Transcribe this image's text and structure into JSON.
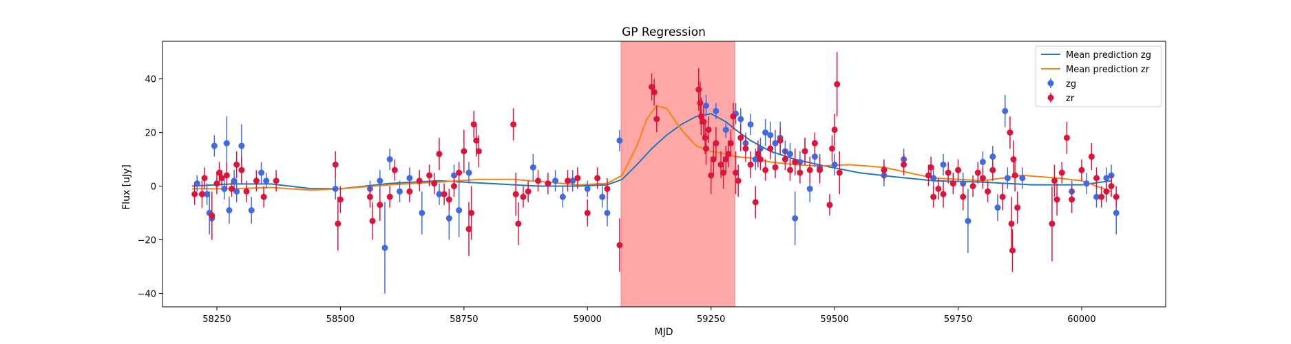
{
  "chart_data": {
    "type": "scatter",
    "title": "GP Regression",
    "xlabel": "MJD",
    "ylabel": "Flux [uJy]",
    "xlim": [
      58140,
      60170
    ],
    "ylim": [
      -45,
      54
    ],
    "xticks": [
      58250,
      58500,
      58750,
      59000,
      59250,
      59500,
      59750,
      60000
    ],
    "yticks": [
      -40,
      -20,
      0,
      20,
      40
    ],
    "highlight_span": {
      "x0": 59068,
      "x1": 59298,
      "color": "#ff9999"
    },
    "legend": {
      "placement": "upper right",
      "entries": [
        {
          "label": "Mean prediction zg",
          "kind": "line",
          "color": "#1f77b4"
        },
        {
          "label": "Mean prediction zr",
          "kind": "line",
          "color": "#ff7f0e"
        },
        {
          "label": "zg",
          "kind": "errorbar",
          "color": "#4169e1"
        },
        {
          "label": "zr",
          "kind": "errorbar",
          "color": "#dc143c"
        }
      ]
    },
    "lines": [
      {
        "name": "Mean prediction zg",
        "color": "#1f77b4",
        "x": [
          58200,
          58280,
          58360,
          58440,
          58500,
          58600,
          58700,
          58800,
          58900,
          58980,
          59040,
          59070,
          59100,
          59130,
          59160,
          59190,
          59220,
          59250,
          59280,
          59300,
          59330,
          59370,
          59420,
          59480,
          59550,
          59620,
          59700,
          59800,
          59900,
          60000,
          60060
        ],
        "y": [
          0,
          0.8,
          0.8,
          -0.9,
          -1,
          1,
          2,
          1,
          0,
          0,
          0.5,
          2.5,
          8,
          14,
          19,
          23,
          26,
          27,
          24,
          21,
          17,
          13,
          10,
          7.5,
          5,
          3.5,
          2,
          1.5,
          0.5,
          0.5,
          2
        ]
      },
      {
        "name": "Mean prediction zr",
        "color": "#ff7f0e",
        "x": [
          58200,
          58280,
          58360,
          58440,
          58500,
          58600,
          58700,
          58780,
          58850,
          58920,
          58980,
          59040,
          59070,
          59100,
          59120,
          59140,
          59160,
          59190,
          59220,
          59250,
          59280,
          59300,
          59330,
          59370,
          59420,
          59470,
          59530,
          59600,
          59700,
          59800,
          59880,
          59950,
          60000,
          60060
        ],
        "y": [
          -1,
          -1,
          -0.5,
          -1.5,
          -1,
          0.5,
          1.5,
          2.5,
          2.5,
          1.5,
          0.5,
          1,
          4,
          15,
          25,
          30,
          29,
          21,
          15,
          13,
          12,
          11,
          10.5,
          9,
          8,
          7.5,
          8,
          7,
          3,
          2,
          4,
          3,
          2,
          -2
        ]
      }
    ],
    "series": [
      {
        "name": "zg",
        "color": "#4169e1",
        "points": [
          [
            58210,
            1,
            3
          ],
          [
            58230,
            -3,
            4
          ],
          [
            58235,
            -10,
            8
          ],
          [
            58240,
            -12,
            8
          ],
          [
            58245,
            15,
            4
          ],
          [
            58265,
            -1,
            4
          ],
          [
            58270,
            16,
            10
          ],
          [
            58275,
            -9,
            5
          ],
          [
            58285,
            2,
            4
          ],
          [
            58290,
            -2,
            4
          ],
          [
            58300,
            15,
            8
          ],
          [
            58320,
            -9,
            5
          ],
          [
            58340,
            5,
            4
          ],
          [
            58350,
            2,
            3
          ],
          [
            58490,
            -1,
            4
          ],
          [
            58560,
            -1,
            3
          ],
          [
            58580,
            2,
            4
          ],
          [
            58590,
            -23,
            17
          ],
          [
            58600,
            10,
            4
          ],
          [
            58620,
            -2,
            4
          ],
          [
            58640,
            3,
            4
          ],
          [
            58665,
            -10,
            8
          ],
          [
            58700,
            -3,
            4
          ],
          [
            58720,
            -12,
            8
          ],
          [
            58730,
            4,
            4
          ],
          [
            58740,
            -9,
            10
          ],
          [
            58760,
            5,
            4
          ],
          [
            58890,
            7,
            5
          ],
          [
            58935,
            2,
            4
          ],
          [
            58950,
            -4,
            4
          ],
          [
            58970,
            2,
            4
          ],
          [
            59000,
            -1,
            3
          ],
          [
            59030,
            -4,
            4
          ],
          [
            59040,
            -10,
            5
          ],
          [
            59065,
            17,
            4
          ],
          [
            59240,
            30,
            4
          ],
          [
            59260,
            28,
            3
          ],
          [
            59280,
            21,
            3
          ],
          [
            59300,
            27,
            4
          ],
          [
            59310,
            25,
            4
          ],
          [
            59320,
            16,
            4
          ],
          [
            59330,
            23,
            4
          ],
          [
            59340,
            10,
            4
          ],
          [
            59350,
            14,
            4
          ],
          [
            59360,
            20,
            5
          ],
          [
            59370,
            19,
            5
          ],
          [
            59380,
            16,
            5
          ],
          [
            59390,
            18,
            6
          ],
          [
            59400,
            13,
            4
          ],
          [
            59410,
            12,
            4
          ],
          [
            59420,
            -12,
            10
          ],
          [
            59430,
            9,
            4
          ],
          [
            59440,
            13,
            5
          ],
          [
            59450,
            -1,
            5
          ],
          [
            59460,
            11,
            4
          ],
          [
            59470,
            7,
            5
          ],
          [
            59500,
            8,
            4
          ],
          [
            59600,
            4,
            4
          ],
          [
            59640,
            10,
            4
          ],
          [
            59700,
            3,
            4
          ],
          [
            59720,
            8,
            4
          ],
          [
            59740,
            1,
            4
          ],
          [
            59760,
            1,
            4
          ],
          [
            59770,
            -13,
            12
          ],
          [
            59800,
            9,
            4
          ],
          [
            59820,
            11,
            4
          ],
          [
            59830,
            -8,
            5
          ],
          [
            59845,
            28,
            6
          ],
          [
            59850,
            3,
            4
          ],
          [
            59880,
            3,
            4
          ],
          [
            59980,
            -2,
            4
          ],
          [
            60010,
            1,
            4
          ],
          [
            60030,
            -4,
            4
          ],
          [
            60050,
            3,
            4
          ],
          [
            60060,
            4,
            4
          ],
          [
            60070,
            -10,
            8
          ]
        ]
      },
      {
        "name": "zr",
        "color": "#dc143c",
        "points": [
          [
            58205,
            -3,
            4
          ],
          [
            58220,
            -3,
            5
          ],
          [
            58225,
            3,
            4
          ],
          [
            58240,
            -11,
            9
          ],
          [
            58250,
            1,
            4
          ],
          [
            58255,
            5,
            4
          ],
          [
            58260,
            3,
            3
          ],
          [
            58270,
            4,
            5
          ],
          [
            58280,
            -1,
            3
          ],
          [
            58290,
            8,
            5
          ],
          [
            58300,
            6,
            5
          ],
          [
            58310,
            -2,
            4
          ],
          [
            58330,
            2,
            4
          ],
          [
            58345,
            -4,
            4
          ],
          [
            58370,
            2,
            4
          ],
          [
            58490,
            8,
            5
          ],
          [
            58495,
            -14,
            10
          ],
          [
            58500,
            -5,
            5
          ],
          [
            58560,
            -4,
            4
          ],
          [
            58565,
            -13,
            7
          ],
          [
            58580,
            -7,
            6
          ],
          [
            58600,
            -4,
            4
          ],
          [
            58610,
            6,
            4
          ],
          [
            58640,
            -2,
            4
          ],
          [
            58660,
            2,
            4
          ],
          [
            58680,
            4,
            4
          ],
          [
            58690,
            1,
            4
          ],
          [
            58700,
            12,
            6
          ],
          [
            58710,
            -3,
            4
          ],
          [
            58720,
            -5,
            4
          ],
          [
            58730,
            0,
            4
          ],
          [
            58740,
            5,
            4
          ],
          [
            58750,
            13,
            8
          ],
          [
            58760,
            -16,
            10
          ],
          [
            58765,
            -10,
            10
          ],
          [
            58770,
            23,
            5
          ],
          [
            58775,
            17,
            6
          ],
          [
            58780,
            13,
            6
          ],
          [
            58850,
            23,
            6
          ],
          [
            58855,
            -3,
            8
          ],
          [
            58860,
            -14,
            8
          ],
          [
            58870,
            -4,
            4
          ],
          [
            58880,
            -2,
            4
          ],
          [
            58900,
            2,
            4
          ],
          [
            58920,
            1,
            4
          ],
          [
            58960,
            2,
            4
          ],
          [
            58980,
            3,
            4
          ],
          [
            59000,
            -10,
            5
          ],
          [
            59020,
            3,
            4
          ],
          [
            59040,
            -1,
            4
          ],
          [
            59065,
            -22,
            10
          ],
          [
            59130,
            37,
            5
          ],
          [
            59135,
            35,
            5
          ],
          [
            59140,
            25,
            5
          ],
          [
            59225,
            36,
            8
          ],
          [
            59228,
            31,
            8
          ],
          [
            59230,
            26,
            7
          ],
          [
            59235,
            24,
            6
          ],
          [
            59238,
            18,
            6
          ],
          [
            59240,
            14,
            6
          ],
          [
            59245,
            21,
            5
          ],
          [
            59250,
            4,
            7
          ],
          [
            59255,
            10,
            6
          ],
          [
            59260,
            16,
            6
          ],
          [
            59270,
            8,
            5
          ],
          [
            59275,
            5,
            6
          ],
          [
            59280,
            10,
            5
          ],
          [
            59285,
            12,
            5
          ],
          [
            59290,
            16,
            5
          ],
          [
            59295,
            26,
            5
          ],
          [
            59300,
            5,
            8
          ],
          [
            59305,
            2,
            6
          ],
          [
            59310,
            18,
            5
          ],
          [
            59320,
            14,
            5
          ],
          [
            59330,
            8,
            5
          ],
          [
            59340,
            -6,
            6
          ],
          [
            59345,
            12,
            5
          ],
          [
            59350,
            10,
            4
          ],
          [
            59360,
            6,
            4
          ],
          [
            59370,
            14,
            4
          ],
          [
            59380,
            7,
            4
          ],
          [
            59390,
            17,
            5
          ],
          [
            59400,
            10,
            4
          ],
          [
            59410,
            6,
            4
          ],
          [
            59420,
            9,
            5
          ],
          [
            59430,
            5,
            4
          ],
          [
            59440,
            13,
            5
          ],
          [
            59450,
            6,
            5
          ],
          [
            59460,
            16,
            4
          ],
          [
            59470,
            6,
            5
          ],
          [
            59490,
            -7,
            4
          ],
          [
            59495,
            14,
            5
          ],
          [
            59500,
            21,
            6
          ],
          [
            59505,
            38,
            12
          ],
          [
            59510,
            5,
            8
          ],
          [
            59600,
            6,
            4
          ],
          [
            59640,
            8,
            4
          ],
          [
            59690,
            4,
            4
          ],
          [
            59695,
            7,
            4
          ],
          [
            59700,
            -4,
            4
          ],
          [
            59710,
            -1,
            4
          ],
          [
            59720,
            -3,
            5
          ],
          [
            59730,
            5,
            4
          ],
          [
            59740,
            1,
            4
          ],
          [
            59750,
            6,
            4
          ],
          [
            59760,
            -4,
            5
          ],
          [
            59780,
            0,
            4
          ],
          [
            59790,
            5,
            4
          ],
          [
            59800,
            3,
            4
          ],
          [
            59810,
            -2,
            4
          ],
          [
            59820,
            6,
            4
          ],
          [
            59840,
            -4,
            5
          ],
          [
            59855,
            20,
            6
          ],
          [
            59858,
            -14,
            10
          ],
          [
            59860,
            -24,
            8
          ],
          [
            59862,
            10,
            7
          ],
          [
            59865,
            4,
            6
          ],
          [
            59870,
            -8,
            6
          ],
          [
            59940,
            -14,
            14
          ],
          [
            59945,
            2,
            6
          ],
          [
            59950,
            -5,
            6
          ],
          [
            59960,
            5,
            4
          ],
          [
            59970,
            18,
            6
          ],
          [
            59980,
            -5,
            5
          ],
          [
            60000,
            6,
            4
          ],
          [
            60020,
            11,
            5
          ],
          [
            60030,
            3,
            4
          ],
          [
            60040,
            -4,
            4
          ],
          [
            60050,
            -2,
            4
          ],
          [
            60060,
            0,
            4
          ],
          [
            60070,
            -4,
            4
          ]
        ]
      }
    ]
  }
}
